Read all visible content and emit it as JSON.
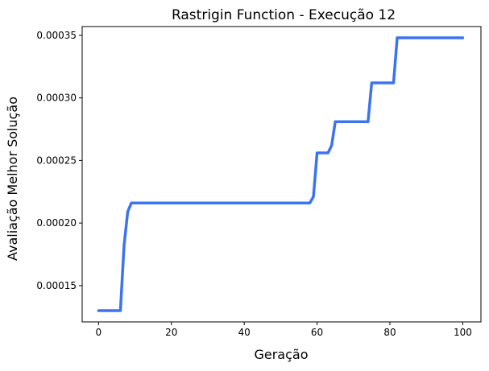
{
  "chart_data": {
    "type": "line",
    "title": "Rastrigin Function - Execução 12",
    "xlabel": "Geração",
    "ylabel": "Avaliação Melhor Solução",
    "xlim": [
      -4.5,
      105
    ],
    "ylim": [
      0.000121,
      0.000357
    ],
    "x_ticks": [
      0,
      20,
      40,
      60,
      80,
      100
    ],
    "y_ticks": [
      0.00015,
      0.0002,
      0.00025,
      0.0003,
      0.00035
    ],
    "y_tick_labels": [
      "0.00015",
      "0.00020",
      "0.00025",
      "0.00030",
      "0.00035"
    ],
    "grid": false,
    "legend": "none",
    "series": [
      {
        "color": "#3b73f0",
        "x": [
          0,
          1,
          2,
          3,
          4,
          5,
          6,
          7,
          8,
          9,
          10,
          20,
          30,
          40,
          50,
          58,
          59,
          60,
          61,
          62,
          63,
          64,
          65,
          66,
          70,
          74,
          75,
          76,
          80,
          81,
          82,
          83,
          90,
          100
        ],
        "y": [
          0.00013,
          0.00013,
          0.00013,
          0.00013,
          0.00013,
          0.00013,
          0.00013,
          0.000182,
          0.000209,
          0.000216,
          0.000216,
          0.000216,
          0.000216,
          0.000216,
          0.000216,
          0.000216,
          0.000221,
          0.000256,
          0.000256,
          0.000256,
          0.000256,
          0.000262,
          0.000281,
          0.000281,
          0.000281,
          0.000281,
          0.000312,
          0.000312,
          0.000312,
          0.000312,
          0.000348,
          0.000348,
          0.000348,
          0.000348
        ]
      }
    ]
  }
}
